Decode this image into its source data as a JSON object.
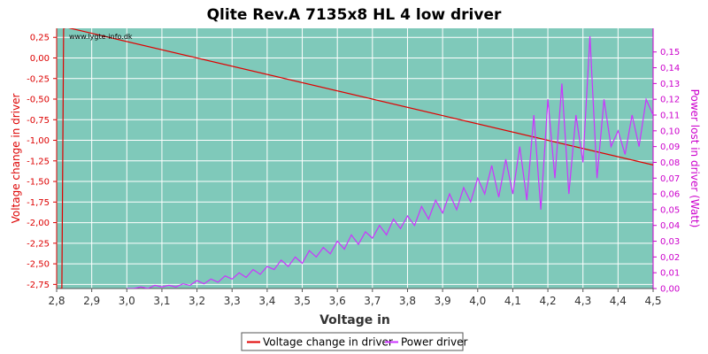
{
  "chart_data": {
    "type": "line",
    "title": "Qlite Rev.A 7135x8 HL 4 low driver",
    "watermark": "www.lygte-info.dk",
    "xlabel": "Voltage in",
    "ylabel_left": "Voltage change in driver",
    "ylabel_right": "Power lost in driver (Watt)",
    "xlim": [
      2.8,
      4.5
    ],
    "ylim_left": [
      -2.8,
      0.36
    ],
    "ylim_right": [
      0.0,
      0.165
    ],
    "x_ticks": [
      "2,8",
      "2,9",
      "3,0",
      "3,1",
      "3,2",
      "3,3",
      "3,4",
      "3,5",
      "3,6",
      "3,7",
      "3,8",
      "3,9",
      "4,0",
      "4,1",
      "4,2",
      "4,3",
      "4,4",
      "4,5"
    ],
    "y_left_ticks": [
      "0,25",
      "0,00",
      "-0,25",
      "-0,50",
      "-0,75",
      "-1,00",
      "-1,25",
      "-1,50",
      "-1,75",
      "-2,00",
      "-2,25",
      "-2,50",
      "-2,75"
    ],
    "y_right_ticks": [
      "0,00",
      "0,01",
      "0,02",
      "0,03",
      "0,04",
      "0,05",
      "0,06",
      "0,07",
      "0,08",
      "0,09",
      "0,10",
      "0,11",
      "0,12",
      "0,13",
      "0,14",
      "0,15"
    ],
    "grid": true,
    "legend_placement": "bottom-center",
    "colors": {
      "plot_bg": "#7fc9ba",
      "voltage_series": "#e00000",
      "power_series": "#cc33ff",
      "grid": "#ffffff",
      "left_axis": "#dd0000",
      "right_axis": "#cc00cc"
    },
    "series": [
      {
        "name": "Voltage change in driver",
        "axis": "left",
        "x": [
          2.81,
          2.815,
          2.82,
          2.83,
          4.5
        ],
        "y": [
          -2.8,
          -2.8,
          0.36,
          0.37,
          -1.3
        ]
      },
      {
        "name": "Power driver",
        "axis": "right",
        "x": [
          3.0,
          3.02,
          3.04,
          3.06,
          3.08,
          3.1,
          3.12,
          3.14,
          3.16,
          3.18,
          3.2,
          3.22,
          3.24,
          3.26,
          3.28,
          3.3,
          3.32,
          3.34,
          3.36,
          3.38,
          3.4,
          3.42,
          3.44,
          3.46,
          3.48,
          3.5,
          3.52,
          3.54,
          3.56,
          3.58,
          3.6,
          3.62,
          3.64,
          3.66,
          3.68,
          3.7,
          3.72,
          3.74,
          3.76,
          3.78,
          3.8,
          3.82,
          3.84,
          3.86,
          3.88,
          3.9,
          3.92,
          3.94,
          3.96,
          3.98,
          4.0,
          4.02,
          4.04,
          4.06,
          4.08,
          4.1,
          4.12,
          4.14,
          4.16,
          4.18,
          4.2,
          4.22,
          4.24,
          4.26,
          4.28,
          4.3,
          4.32,
          4.34,
          4.36,
          4.38,
          4.4,
          4.42,
          4.44,
          4.46,
          4.48,
          4.5
        ],
        "y": [
          0.0,
          0.0,
          0.001,
          0.0,
          0.002,
          0.001,
          0.002,
          0.001,
          0.003,
          0.002,
          0.005,
          0.003,
          0.006,
          0.004,
          0.008,
          0.006,
          0.01,
          0.007,
          0.012,
          0.009,
          0.014,
          0.012,
          0.018,
          0.014,
          0.02,
          0.016,
          0.024,
          0.02,
          0.026,
          0.022,
          0.03,
          0.025,
          0.034,
          0.028,
          0.036,
          0.032,
          0.04,
          0.034,
          0.044,
          0.038,
          0.046,
          0.04,
          0.052,
          0.044,
          0.056,
          0.048,
          0.06,
          0.05,
          0.064,
          0.055,
          0.07,
          0.06,
          0.078,
          0.058,
          0.082,
          0.06,
          0.09,
          0.056,
          0.11,
          0.05,
          0.12,
          0.07,
          0.13,
          0.06,
          0.11,
          0.08,
          0.16,
          0.07,
          0.12,
          0.09,
          0.1,
          0.085,
          0.11,
          0.09,
          0.12,
          0.11
        ]
      }
    ]
  }
}
